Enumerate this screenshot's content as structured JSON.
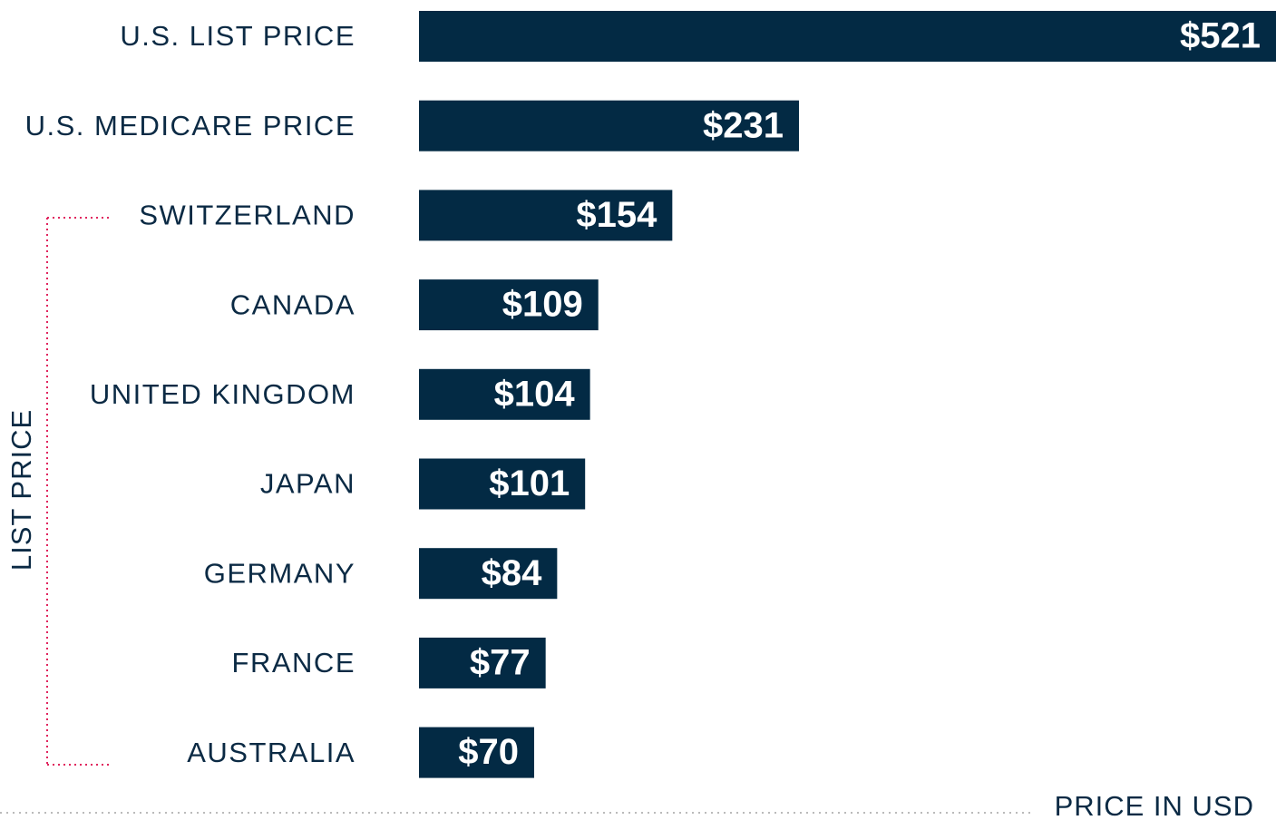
{
  "chart_data": {
    "type": "bar",
    "orientation": "horizontal",
    "categories": [
      "U.S. LIST PRICE",
      "U.S. MEDICARE PRICE",
      "SWITZERLAND",
      "CANADA",
      "UNITED KINGDOM",
      "JAPAN",
      "GERMANY",
      "FRANCE",
      "AUSTRALIA"
    ],
    "values": [
      521,
      231,
      154,
      109,
      104,
      101,
      84,
      77,
      70
    ],
    "value_labels": [
      "$521",
      "$231",
      "$154",
      "$109",
      "$104",
      "$101",
      "$84",
      "$77",
      "$70"
    ],
    "color": "#032a44",
    "bracket_label": "LIST PRICE",
    "x_label": "PRICE IN USD"
  }
}
